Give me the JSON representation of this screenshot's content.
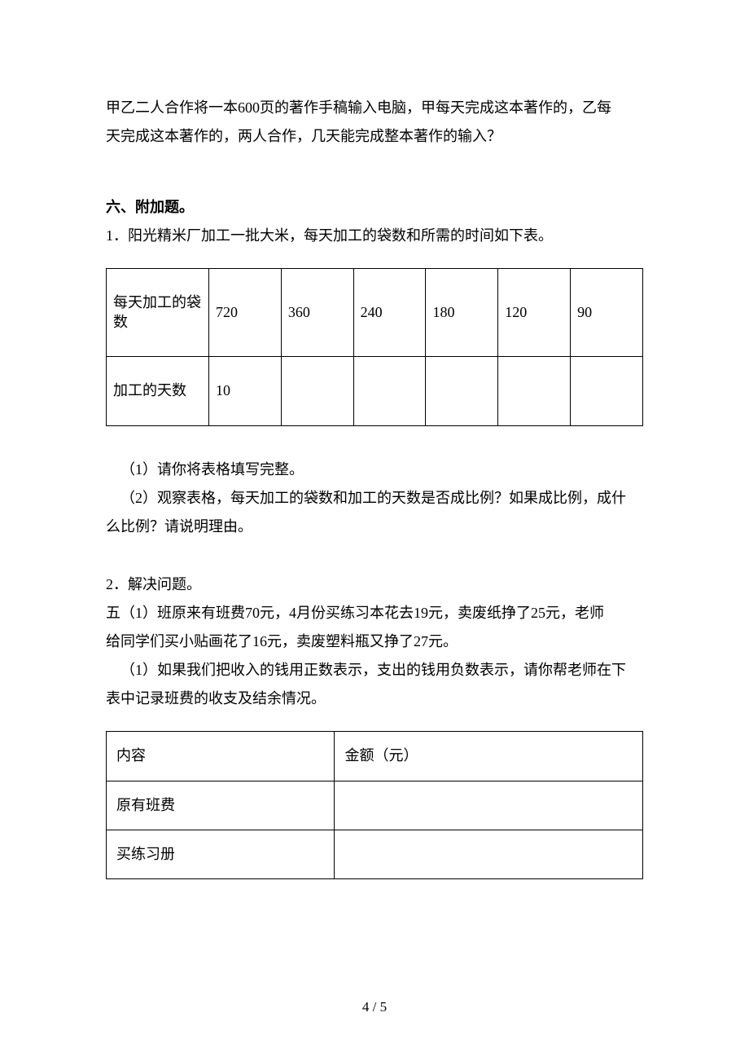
{
  "para_top": {
    "line1": "甲乙二人合作将一本600页的著作手稿输入电脑，甲每天完成这本著作的，乙每",
    "line2": "天完成这本著作的，两人合作，几天能完成整本著作的输入？"
  },
  "section6": {
    "heading": "六、附加题。",
    "q1_intro": "1．阳光精米厂加工一批大米，每天加工的袋数和所需的时间如下表。",
    "table1": {
      "r1": {
        "c0": "每天加工的袋数",
        "c1": "720",
        "c2": "360",
        "c3": "240",
        "c4": "180",
        "c5": "120",
        "c6": "90"
      },
      "r2": {
        "c0": "加工的天数",
        "c1": "10",
        "c2": "",
        "c3": "",
        "c4": "",
        "c5": "",
        "c6": ""
      }
    },
    "q1_sub1": "（1）请你将表格填写完整。",
    "q1_sub2a": "（2）观察表格，每天加工的袋数和加工的天数是否成比例？如果成比例，成什",
    "q1_sub2b": "么比例？请说明理由。",
    "q2_heading": "2．解决问题。",
    "q2_line1": "五（1）班原来有班费70元，4月份买练习本花去19元，卖废纸挣了25元，老师",
    "q2_line2": "给同学们买小贴画花了16元，卖废塑料瓶又挣了27元。",
    "q2_sub1a": "（1）如果我们把收入的钱用正数表示，支出的钱用负数表示，请你帮老师在下",
    "q2_sub1b": "表中记录班费的收支及结余情况。",
    "table2": {
      "r1": {
        "c0": "内容",
        "c1": "金额（元）"
      },
      "r2": {
        "c0": "原有班费",
        "c1": ""
      },
      "r3": {
        "c0": "买练习册",
        "c1": ""
      }
    }
  },
  "footer": {
    "page_num": "4 / 5"
  }
}
